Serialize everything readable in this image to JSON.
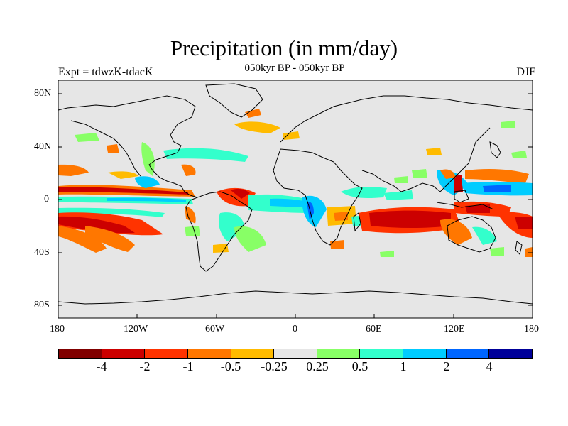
{
  "header": {
    "title": "Precipitation (in mm/day)",
    "experiment": "Expt = tdwzK-tdacK",
    "period": "050kyr BP - 050kyr BP",
    "season": "DJF"
  },
  "map": {
    "background": "#e6e6e6",
    "lat_labels": [
      "80N",
      "40N",
      "0",
      "40S",
      "80S"
    ],
    "lon_labels": [
      "180",
      "120W",
      "60W",
      "0",
      "60E",
      "120E",
      "180"
    ]
  },
  "colorbar": {
    "colors": [
      "#800000",
      "#cc0000",
      "#ff3300",
      "#ff7700",
      "#ffbb00",
      "#e6e6e6",
      "#88ff66",
      "#33ffcc",
      "#00ccff",
      "#0066ff",
      "#000099"
    ],
    "labels": [
      "-4",
      "-2",
      "-1",
      "-0.5",
      "-0.25",
      "0.25",
      "0.5",
      "1",
      "2",
      "4"
    ]
  }
}
